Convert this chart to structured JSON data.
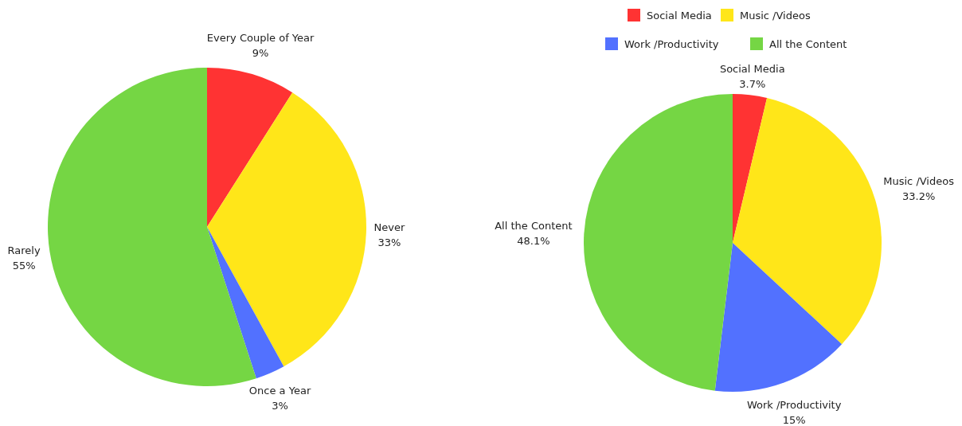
{
  "chart_data": [
    {
      "type": "pie",
      "categories": [
        "Every Couple of Year",
        "Never",
        "Once a Year",
        "Rarely"
      ],
      "values": [
        9,
        33,
        3,
        55
      ],
      "value_labels": [
        "9%",
        "33%",
        "3%",
        "55%"
      ],
      "colors": [
        "#ff3333",
        "#ffe619",
        "#5271ff",
        "#75d644"
      ],
      "legend": false
    },
    {
      "type": "pie",
      "categories": [
        "Social Media",
        "Music /Videos",
        "Work /Productivity",
        "All the Content"
      ],
      "values": [
        3.7,
        33.2,
        15,
        48.1
      ],
      "value_labels": [
        "3.7%",
        "33.2%",
        "15%",
        "48.1%"
      ],
      "colors": [
        "#ff3333",
        "#ffe619",
        "#5271ff",
        "#75d644"
      ],
      "legend": "top"
    }
  ]
}
